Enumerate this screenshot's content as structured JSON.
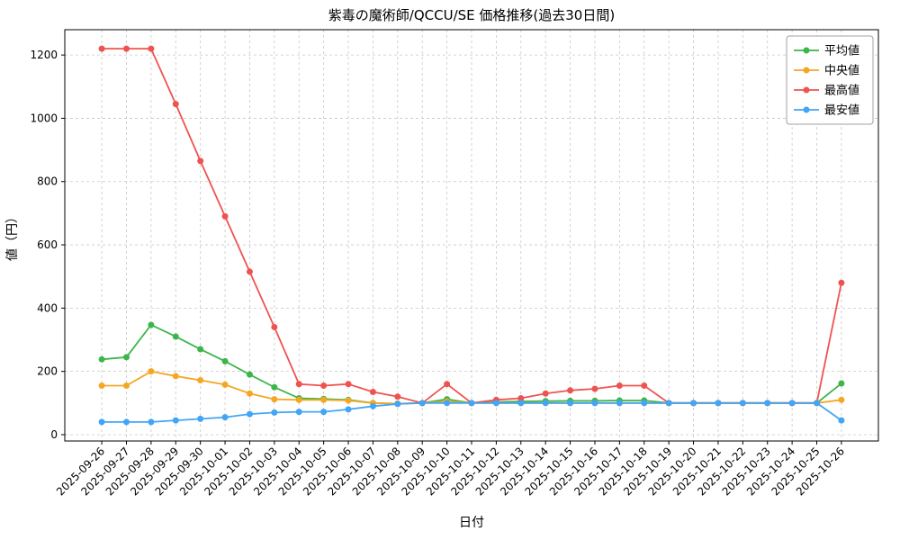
{
  "chart_data": {
    "type": "line",
    "title": "紫毒の魔術師/QCCU/SE 価格推移(過去30日間)",
    "xlabel": "日付",
    "ylabel": "値（円）",
    "x": [
      "2025-09-26",
      "2025-09-27",
      "2025-09-28",
      "2025-09-29",
      "2025-09-30",
      "2025-10-01",
      "2025-10-02",
      "2025-10-03",
      "2025-10-04",
      "2025-10-05",
      "2025-10-06",
      "2025-10-07",
      "2025-10-08",
      "2025-10-09",
      "2025-10-10",
      "2025-10-11",
      "2025-10-12",
      "2025-10-13",
      "2025-10-14",
      "2025-10-15",
      "2025-10-16",
      "2025-10-17",
      "2025-10-18",
      "2025-10-19",
      "2025-10-20",
      "2025-10-21",
      "2025-10-22",
      "2025-10-23",
      "2025-10-24",
      "2025-10-25",
      "2025-10-26"
    ],
    "series": [
      {
        "name": "平均値",
        "color": "#3cb54a",
        "values": [
          238,
          245,
          347,
          310,
          270,
          232,
          190,
          150,
          115,
          113,
          110,
          100,
          98,
          100,
          112,
          100,
          103,
          105,
          106,
          107,
          107,
          108,
          108,
          100,
          100,
          100,
          100,
          100,
          100,
          100,
          162
        ]
      },
      {
        "name": "中央値",
        "color": "#f5a623",
        "values": [
          155,
          155,
          200,
          185,
          172,
          158,
          130,
          112,
          110,
          110,
          108,
          100,
          98,
          100,
          105,
          100,
          100,
          100,
          100,
          100,
          100,
          100,
          100,
          100,
          100,
          100,
          100,
          100,
          100,
          100,
          110
        ]
      },
      {
        "name": "最高値",
        "color": "#ef5350",
        "values": [
          1220,
          1220,
          1220,
          1045,
          865,
          690,
          515,
          340,
          160,
          155,
          160,
          135,
          120,
          100,
          160,
          100,
          110,
          115,
          130,
          140,
          145,
          155,
          155,
          100,
          100,
          100,
          100,
          100,
          100,
          100,
          480
        ]
      },
      {
        "name": "最安値",
        "color": "#42a5f5",
        "values": [
          40,
          40,
          40,
          45,
          50,
          55,
          65,
          70,
          72,
          72,
          80,
          90,
          97,
          100,
          100,
          100,
          100,
          100,
          100,
          100,
          100,
          100,
          100,
          100,
          100,
          100,
          100,
          100,
          100,
          100,
          45
        ]
      }
    ],
    "ylim": [
      -20,
      1280
    ],
    "yticks": [
      0,
      200,
      400,
      600,
      800,
      1000,
      1200
    ],
    "grid": true,
    "grid_style": "dashed",
    "grid_color": "#c8c8c8",
    "axis_color": "#000000",
    "background": "#ffffff",
    "legend_position": "upper-right",
    "marker": "circle"
  }
}
